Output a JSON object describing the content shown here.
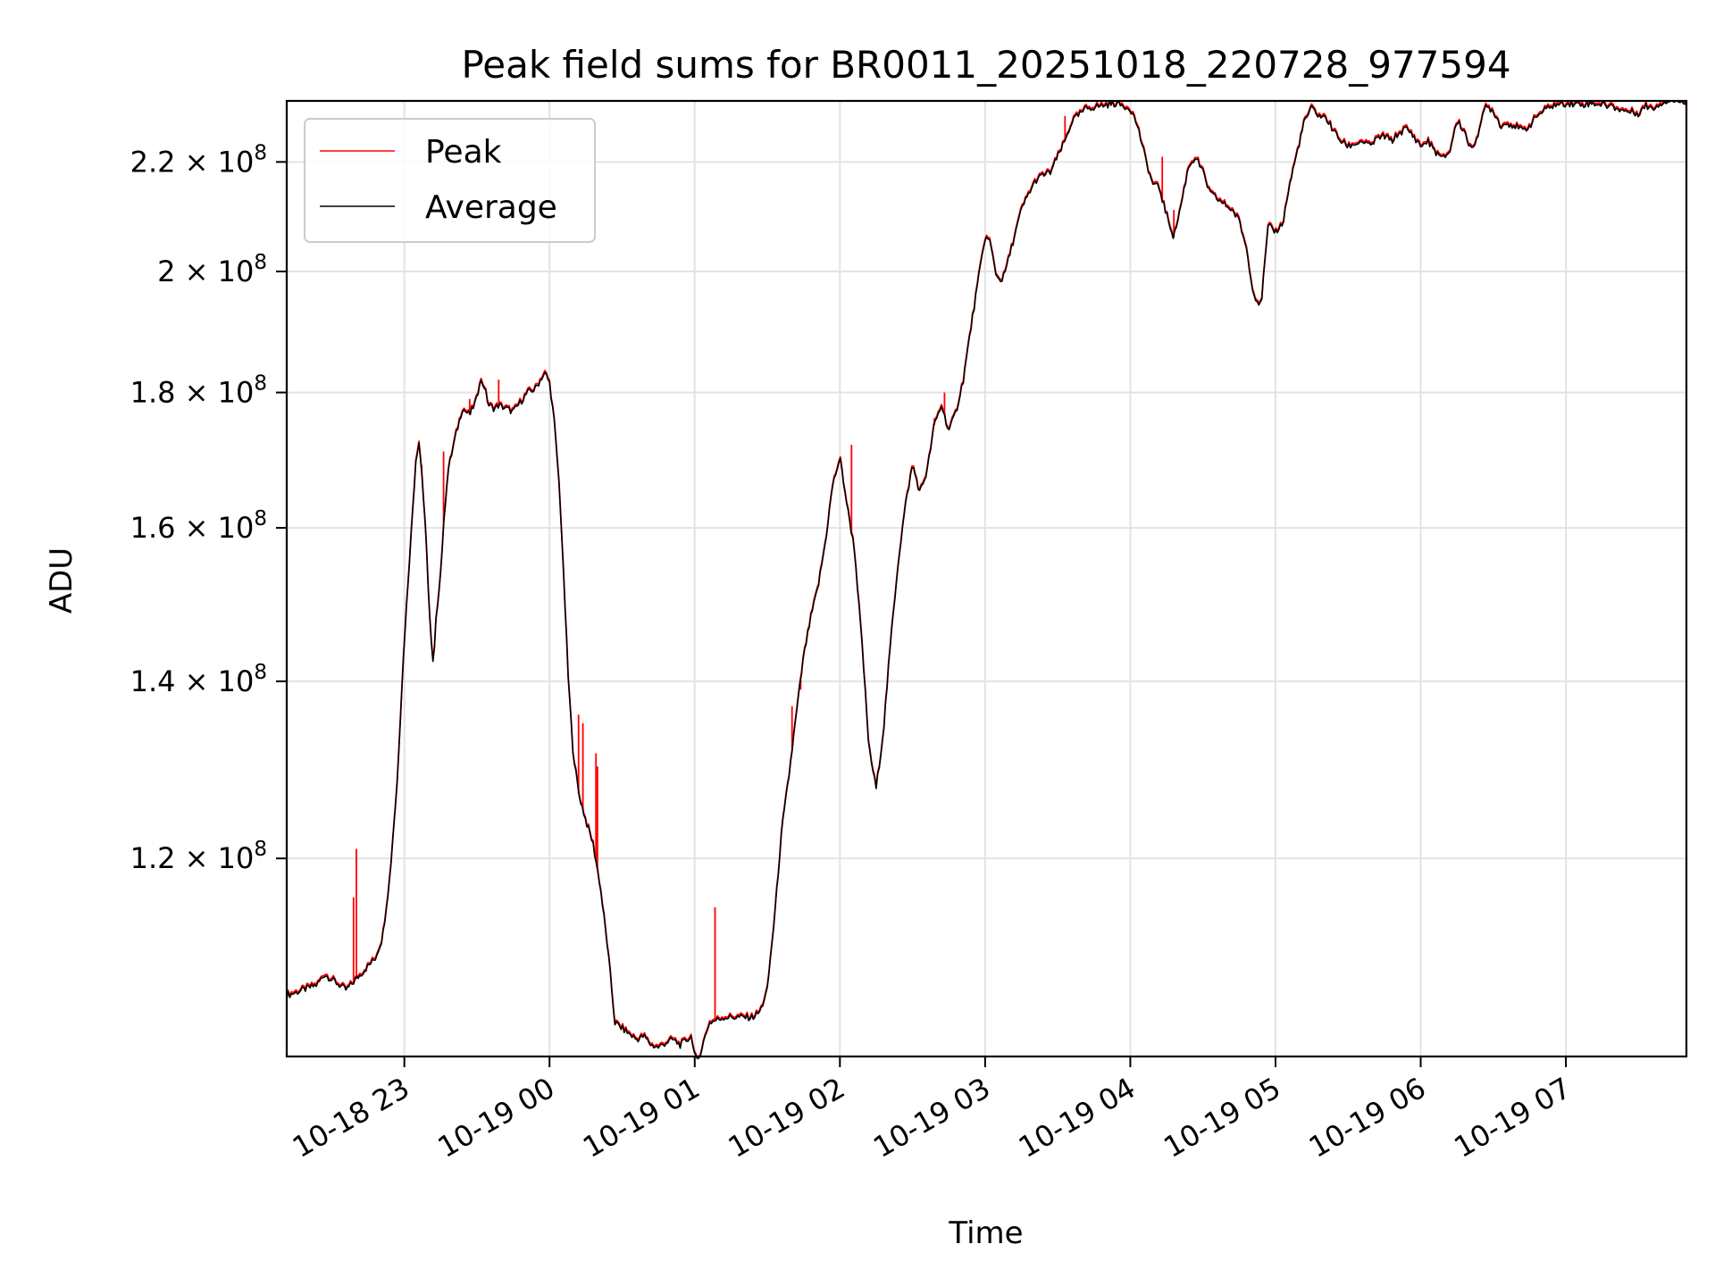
{
  "chart_data": {
    "type": "line",
    "title": "Peak field sums for BR0011_20251018_220728_977594",
    "xlabel": "Time",
    "ylabel": "ADU",
    "y_scale": "log",
    "ylim": [
      101000000,
      232000000
    ],
    "y_ticks": [
      {
        "value": 120000000,
        "mantissa": "1.2",
        "exponent": "8"
      },
      {
        "value": 140000000,
        "mantissa": "1.4",
        "exponent": "8"
      },
      {
        "value": 160000000,
        "mantissa": "1.6",
        "exponent": "8"
      },
      {
        "value": 180000000,
        "mantissa": "1.8",
        "exponent": "8"
      },
      {
        "value": 200000000,
        "mantissa": "2",
        "exponent": "8"
      },
      {
        "value": 220000000,
        "mantissa": "2.2",
        "exponent": "8"
      }
    ],
    "xlim_hours": [
      -1.81,
      7.83
    ],
    "x_ticks": [
      {
        "value": -1,
        "label": "10-18 23"
      },
      {
        "value": 0,
        "label": "10-19 00"
      },
      {
        "value": 1,
        "label": "10-19 01"
      },
      {
        "value": 2,
        "label": "10-19 02"
      },
      {
        "value": 3,
        "label": "10-19 03"
      },
      {
        "value": 4,
        "label": "10-19 04"
      },
      {
        "value": 5,
        "label": "10-19 05"
      },
      {
        "value": 6,
        "label": "10-19 06"
      },
      {
        "value": 7,
        "label": "10-19 07"
      }
    ],
    "x_unit": "hours relative to 10-19 00:00",
    "grid": true,
    "legend_position": "top-left",
    "series": [
      {
        "name": "Peak",
        "color": "#ff0000"
      },
      {
        "name": "Average",
        "color": "#000000"
      }
    ],
    "average": [
      [
        -1.81,
        106.5
      ],
      [
        -1.7,
        107.0
      ],
      [
        -1.6,
        107.5
      ],
      [
        -1.55,
        108.5
      ],
      [
        -1.45,
        107.5
      ],
      [
        -1.4,
        107.0
      ],
      [
        -1.3,
        108.5
      ],
      [
        -1.2,
        110.0
      ],
      [
        -1.15,
        112.0
      ],
      [
        -1.1,
        118.0
      ],
      [
        -1.05,
        128.0
      ],
      [
        -1.0,
        145.0
      ],
      [
        -0.95,
        160.0
      ],
      [
        -0.92,
        170.0
      ],
      [
        -0.9,
        172.5
      ],
      [
        -0.88,
        168.0
      ],
      [
        -0.85,
        158.0
      ],
      [
        -0.82,
        146.0
      ],
      [
        -0.8,
        141.5
      ],
      [
        -0.78,
        148.0
      ],
      [
        -0.75,
        154.0
      ],
      [
        -0.72,
        163.0
      ],
      [
        -0.7,
        168.0
      ],
      [
        -0.65,
        173.0
      ],
      [
        -0.6,
        177.5
      ],
      [
        -0.55,
        176.5
      ],
      [
        -0.5,
        179.0
      ],
      [
        -0.48,
        182.0
      ],
      [
        -0.45,
        181.0
      ],
      [
        -0.42,
        178.0
      ],
      [
        -0.38,
        177.5
      ],
      [
        -0.35,
        178.0
      ],
      [
        -0.3,
        177.5
      ],
      [
        -0.25,
        177.0
      ],
      [
        -0.2,
        178.5
      ],
      [
        -0.15,
        180.0
      ],
      [
        -0.1,
        180.5
      ],
      [
        -0.05,
        182.5
      ],
      [
        -0.03,
        183.0
      ],
      [
        0.0,
        181.5
      ],
      [
        0.03,
        176.0
      ],
      [
        0.07,
        165.0
      ],
      [
        0.1,
        152.0
      ],
      [
        0.13,
        140.0
      ],
      [
        0.16,
        132.0
      ],
      [
        0.2,
        127.0
      ],
      [
        0.25,
        124.0
      ],
      [
        0.3,
        121.5
      ],
      [
        0.35,
        117.0
      ],
      [
        0.4,
        111.0
      ],
      [
        0.45,
        104.0
      ],
      [
        0.5,
        103.5
      ],
      [
        0.55,
        103.0
      ],
      [
        0.6,
        102.5
      ],
      [
        0.65,
        102.8
      ],
      [
        0.7,
        102.0
      ],
      [
        0.75,
        101.8
      ],
      [
        0.8,
        102.2
      ],
      [
        0.85,
        102.5
      ],
      [
        0.9,
        102.0
      ],
      [
        0.95,
        102.5
      ],
      [
        0.98,
        102.8
      ],
      [
        1.0,
        101.0
      ],
      [
        1.02,
        100.5
      ],
      [
        1.05,
        101.8
      ],
      [
        1.1,
        104.0
      ],
      [
        1.2,
        104.5
      ],
      [
        1.3,
        104.5
      ],
      [
        1.4,
        104.5
      ],
      [
        1.45,
        105.0
      ],
      [
        1.5,
        107.0
      ],
      [
        1.55,
        114.0
      ],
      [
        1.6,
        123.0
      ],
      [
        1.65,
        129.0
      ],
      [
        1.7,
        136.0
      ],
      [
        1.75,
        143.0
      ],
      [
        1.8,
        148.0
      ],
      [
        1.85,
        152.0
      ],
      [
        1.9,
        158.0
      ],
      [
        1.95,
        166.0
      ],
      [
        2.0,
        170.0
      ],
      [
        2.05,
        163.0
      ],
      [
        2.1,
        157.0
      ],
      [
        2.15,
        145.0
      ],
      [
        2.2,
        132.0
      ],
      [
        2.25,
        127.5
      ],
      [
        2.3,
        134.0
      ],
      [
        2.35,
        145.0
      ],
      [
        2.4,
        155.0
      ],
      [
        2.45,
        163.0
      ],
      [
        2.5,
        169.0
      ],
      [
        2.55,
        165.0
      ],
      [
        2.6,
        168.0
      ],
      [
        2.65,
        175.0
      ],
      [
        2.7,
        178.0
      ],
      [
        2.75,
        174.0
      ],
      [
        2.8,
        177.0
      ],
      [
        2.85,
        182.0
      ],
      [
        2.9,
        190.0
      ],
      [
        2.95,
        198.0
      ],
      [
        3.0,
        206.0
      ],
      [
        3.03,
        205.5
      ],
      [
        3.08,
        199.0
      ],
      [
        3.12,
        198.5
      ],
      [
        3.15,
        201.0
      ],
      [
        3.2,
        206.0
      ],
      [
        3.25,
        211.0
      ],
      [
        3.3,
        214.0
      ],
      [
        3.35,
        216.5
      ],
      [
        3.4,
        217.5
      ],
      [
        3.45,
        218.0
      ],
      [
        3.5,
        221.0
      ],
      [
        3.55,
        224.0
      ],
      [
        3.6,
        228.0
      ],
      [
        3.7,
        230.5
      ],
      [
        3.8,
        231.0
      ],
      [
        3.9,
        231.5
      ],
      [
        4.0,
        230.5
      ],
      [
        4.05,
        227.0
      ],
      [
        4.1,
        221.0
      ],
      [
        4.15,
        216.0
      ],
      [
        4.2,
        215.0
      ],
      [
        4.25,
        210.0
      ],
      [
        4.3,
        206.0
      ],
      [
        4.35,
        212.0
      ],
      [
        4.4,
        219.0
      ],
      [
        4.45,
        221.0
      ],
      [
        4.5,
        218.0
      ],
      [
        4.55,
        214.0
      ],
      [
        4.6,
        213.0
      ],
      [
        4.65,
        212.0
      ],
      [
        4.7,
        211.0
      ],
      [
        4.75,
        209.0
      ],
      [
        4.8,
        204.0
      ],
      [
        4.85,
        196.0
      ],
      [
        4.9,
        194.0
      ],
      [
        4.95,
        208.0
      ],
      [
        5.0,
        207.0
      ],
      [
        5.05,
        208.5
      ],
      [
        5.1,
        216.0
      ],
      [
        5.15,
        222.0
      ],
      [
        5.2,
        228.0
      ],
      [
        5.25,
        230.5
      ],
      [
        5.3,
        229.0
      ],
      [
        5.35,
        228.5
      ],
      [
        5.4,
        226.0
      ],
      [
        5.45,
        224.0
      ],
      [
        5.5,
        223.0
      ],
      [
        5.55,
        223.5
      ],
      [
        5.6,
        224.0
      ],
      [
        5.65,
        223.0
      ],
      [
        5.7,
        224.5
      ],
      [
        5.75,
        225.0
      ],
      [
        5.8,
        224.0
      ],
      [
        5.85,
        225.5
      ],
      [
        5.9,
        226.5
      ],
      [
        5.95,
        225.0
      ],
      [
        6.0,
        223.0
      ],
      [
        6.05,
        224.0
      ],
      [
        6.1,
        222.0
      ],
      [
        6.15,
        220.5
      ],
      [
        6.2,
        222.0
      ],
      [
        6.25,
        228.0
      ],
      [
        6.3,
        226.0
      ],
      [
        6.35,
        222.0
      ],
      [
        6.4,
        226.0
      ],
      [
        6.45,
        231.0
      ],
      [
        6.5,
        230.0
      ],
      [
        6.55,
        227.0
      ],
      [
        6.6,
        227.5
      ],
      [
        6.65,
        227.0
      ],
      [
        6.7,
        226.0
      ],
      [
        6.75,
        227.0
      ],
      [
        6.8,
        229.0
      ],
      [
        6.9,
        231.0
      ],
      [
        7.0,
        231.5
      ],
      [
        7.1,
        231.3
      ],
      [
        7.2,
        231.5
      ],
      [
        7.3,
        231.0
      ],
      [
        7.4,
        230.0
      ],
      [
        7.5,
        229.5
      ],
      [
        7.55,
        231.0
      ],
      [
        7.6,
        230.5
      ],
      [
        7.65,
        231.5
      ],
      [
        7.7,
        232.0
      ],
      [
        7.83,
        232.0
      ]
    ],
    "peak_spikes": [
      [
        -1.35,
        116.0
      ],
      [
        -1.33,
        121.0
      ],
      [
        -0.88,
        169.0
      ],
      [
        -0.73,
        171.0
      ],
      [
        -0.55,
        179.0
      ],
      [
        -0.35,
        182.0
      ],
      [
        0.2,
        136.0
      ],
      [
        0.23,
        135.0
      ],
      [
        0.32,
        131.5
      ],
      [
        0.33,
        130.0
      ],
      [
        1.14,
        115.0
      ],
      [
        1.67,
        137.0
      ],
      [
        1.73,
        139.0
      ],
      [
        2.08,
        172.0
      ],
      [
        2.65,
        176.0
      ],
      [
        2.72,
        180.0
      ],
      [
        3.55,
        229.0
      ],
      [
        4.22,
        221.0
      ],
      [
        4.3,
        211.0
      ]
    ]
  }
}
